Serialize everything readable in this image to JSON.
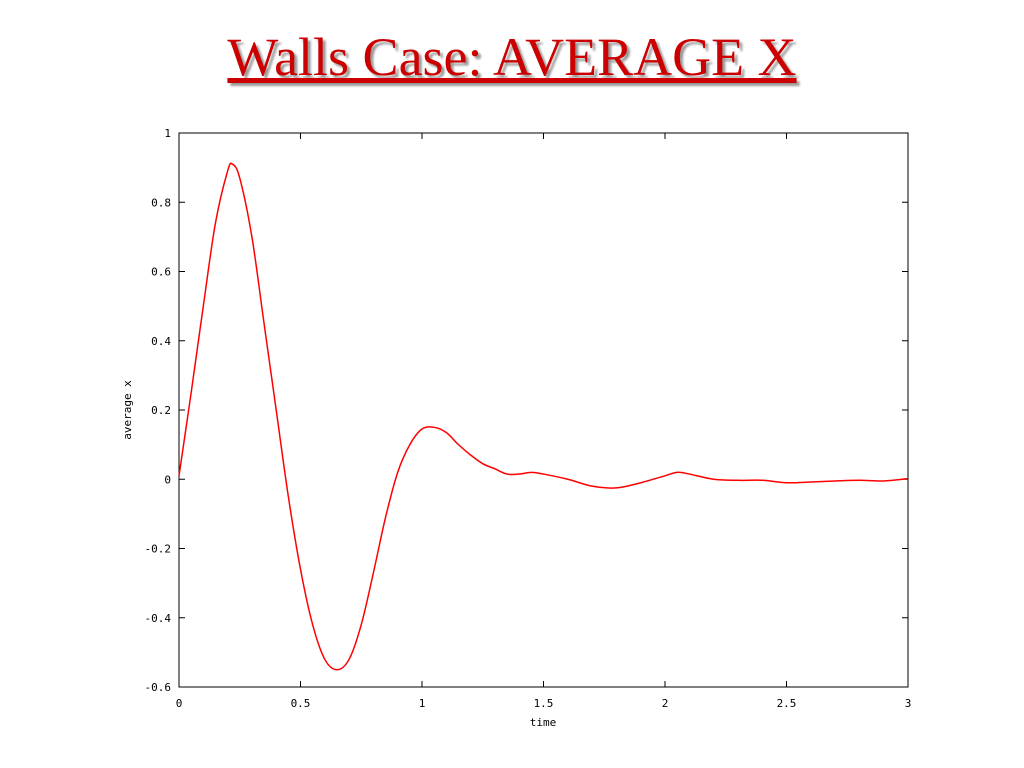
{
  "chart_data": {
    "type": "line",
    "title": "Walls Case: AVERAGE X",
    "x_label": "time",
    "y_label": "average x",
    "xlim": [
      0,
      3
    ],
    "ylim": [
      -0.6,
      1
    ],
    "xticks": [
      0,
      0.5,
      1,
      1.5,
      2,
      2.5,
      3
    ],
    "yticks": [
      -0.6,
      -0.4,
      -0.2,
      0,
      0.2,
      0.4,
      0.6,
      0.8,
      1
    ],
    "x": [
      0,
      0.05,
      0.1,
      0.15,
      0.2,
      0.22,
      0.25,
      0.3,
      0.35,
      0.4,
      0.45,
      0.5,
      0.55,
      0.6,
      0.65,
      0.7,
      0.75,
      0.8,
      0.85,
      0.9,
      0.95,
      1.0,
      1.05,
      1.1,
      1.15,
      1.2,
      1.25,
      1.3,
      1.35,
      1.4,
      1.45,
      1.5,
      1.6,
      1.7,
      1.8,
      1.9,
      2.0,
      2.05,
      2.1,
      2.2,
      2.3,
      2.4,
      2.5,
      2.6,
      2.7,
      2.8,
      2.9,
      3.0
    ],
    "series": [
      {
        "color": "#ff0000",
        "values": [
          0.01,
          0.25,
          0.5,
          0.74,
          0.89,
          0.91,
          0.87,
          0.7,
          0.45,
          0.2,
          -0.05,
          -0.26,
          -0.42,
          -0.52,
          -0.55,
          -0.52,
          -0.42,
          -0.27,
          -0.11,
          0.02,
          0.1,
          0.145,
          0.15,
          0.135,
          0.1,
          0.07,
          0.045,
          0.03,
          0.015,
          0.015,
          0.02,
          0.015,
          0.0,
          -0.02,
          -0.025,
          -0.01,
          0.01,
          0.02,
          0.015,
          0.0,
          -0.003,
          -0.003,
          -0.01,
          -0.008,
          -0.005,
          -0.003,
          -0.005,
          0.002
        ]
      }
    ]
  }
}
